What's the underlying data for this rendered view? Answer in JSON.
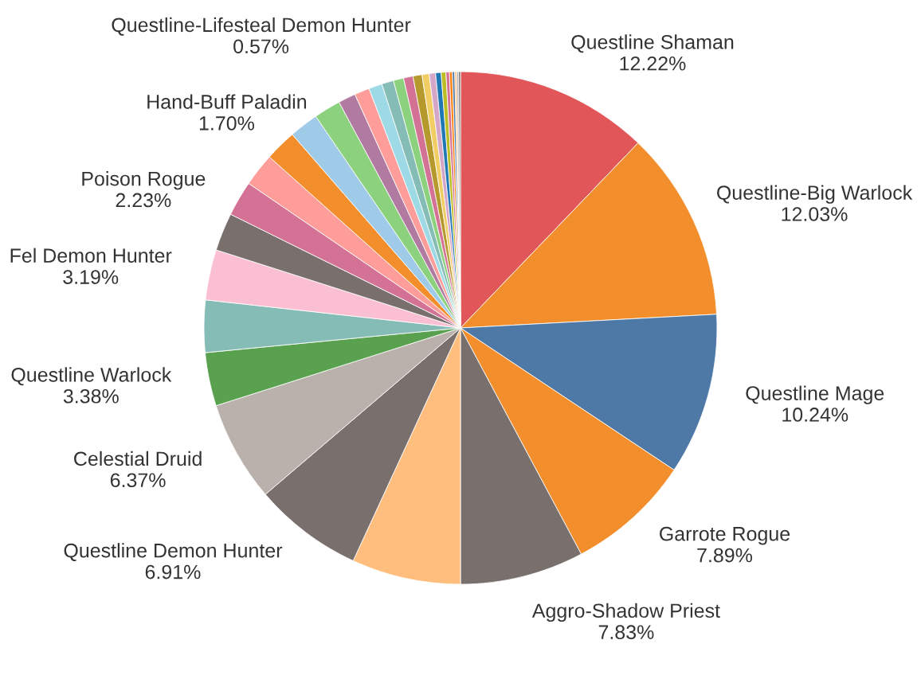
{
  "chart_data": {
    "type": "pie",
    "categories": [
      "Questline Shaman",
      "Questline-Big Warlock",
      "Questline Mage",
      "Garrote Rogue",
      "Aggro-Shadow Priest",
      null,
      "Questline Demon Hunter",
      "Celestial Druid",
      "Questline Warlock",
      null,
      "Fel Demon Hunter",
      null,
      "Poison Rogue",
      null,
      null,
      null,
      "Hand-Buff Paladin",
      null,
      null,
      null,
      null,
      null,
      null,
      "Questline-Lifesteal Demon Hunter",
      null,
      null,
      null,
      null,
      null,
      null,
      null,
      null,
      null,
      null
    ],
    "values": [
      12.22,
      12.03,
      10.24,
      7.89,
      7.83,
      6.9,
      6.91,
      6.37,
      3.38,
      3.3,
      3.19,
      2.4,
      2.23,
      2.1,
      2.0,
      1.85,
      1.7,
      1.1,
      0.95,
      0.85,
      0.75,
      0.65,
      0.6,
      0.57,
      0.45,
      0.4,
      0.35,
      0.3,
      0.22,
      0.18,
      0.15,
      0.12,
      0.12,
      0.12
    ],
    "value_labels": [
      "12.22%",
      "12.03%",
      "10.24%",
      "7.89%",
      "7.83%",
      null,
      "6.91%",
      "6.37%",
      "3.38%",
      null,
      "3.19%",
      null,
      "2.23%",
      null,
      null,
      null,
      "1.70%",
      null,
      null,
      null,
      null,
      null,
      null,
      "0.57%",
      null,
      null,
      null,
      null,
      null,
      null,
      null,
      null,
      null,
      null
    ],
    "colors": [
      "#e15759",
      "#f28e2b",
      "#4e79a7",
      "#f28e2b",
      "#79706e",
      "#ffbe7d",
      "#79706e",
      "#bab0ac",
      "#59a14f",
      "#86bcb6",
      "#fabfd2",
      "#79706e",
      "#d37295",
      "#ff9d9a",
      "#f28e2b",
      "#a0cbe8",
      "#8cd17d",
      "#b07aa1",
      "#ff9d9a",
      "#9edae5",
      "#86bcb6",
      "#8cd17d",
      "#d37295",
      "#b6992d",
      "#f1ce63",
      "#d4a6c8",
      "#1f77b4",
      "#bcbd22",
      "#d37295",
      "#ff7f0e",
      "#4e79a7",
      "#ffbe7d",
      "#bab0ac",
      "#79706e"
    ]
  }
}
